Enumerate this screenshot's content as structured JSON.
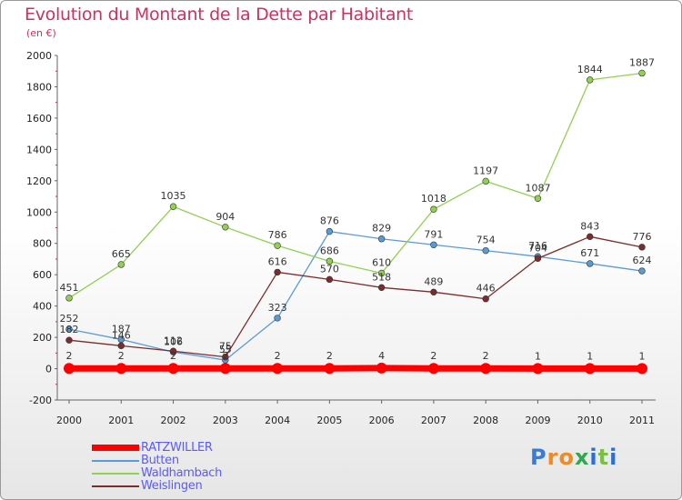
{
  "title": "Evolution du Montant de la Dette par Habitant",
  "subtitle": "(en €)",
  "logo": "Proxiti",
  "colors": {
    "title": "#c8335f",
    "ratzwiller": "#ff0000",
    "butten": "#5b9bd5",
    "waldhambach": "#92d050",
    "weislingen": "#7b2c2c"
  },
  "chart_data": {
    "type": "line",
    "title": "Evolution du Montant de la Dette par Habitant",
    "subtitle": "(en €)",
    "x": [
      "2000",
      "2001",
      "2002",
      "2003",
      "2004",
      "2005",
      "2006",
      "2007",
      "2008",
      "2009",
      "2010",
      "2011"
    ],
    "ylim": [
      -200,
      2000
    ],
    "yticks": [
      -200,
      0,
      200,
      400,
      600,
      800,
      1000,
      1200,
      1400,
      1600,
      1800,
      2000
    ],
    "grid": false,
    "legend_position": "bottom-left",
    "series": [
      {
        "name": "RATZWILLER",
        "color": "#ff0000",
        "width": 7,
        "values": [
          2,
          2,
          2,
          2,
          2,
          2,
          4,
          2,
          2,
          1,
          1,
          1
        ]
      },
      {
        "name": "Butten",
        "color": "#5b9bd5",
        "width": 1.3,
        "values": [
          252,
          187,
          106,
          55,
          323,
          876,
          829,
          791,
          754,
          716,
          671,
          624
        ]
      },
      {
        "name": "Waldhambach",
        "color": "#92d050",
        "width": 1.3,
        "values": [
          451,
          665,
          1035,
          904,
          786,
          686,
          610,
          1018,
          1197,
          1087,
          1844,
          1887
        ]
      },
      {
        "name": "Weislingen",
        "color": "#7b2c2c",
        "width": 1.3,
        "values": [
          182,
          146,
          112,
          75,
          616,
          570,
          518,
          489,
          446,
          704,
          843,
          776
        ]
      }
    ]
  }
}
